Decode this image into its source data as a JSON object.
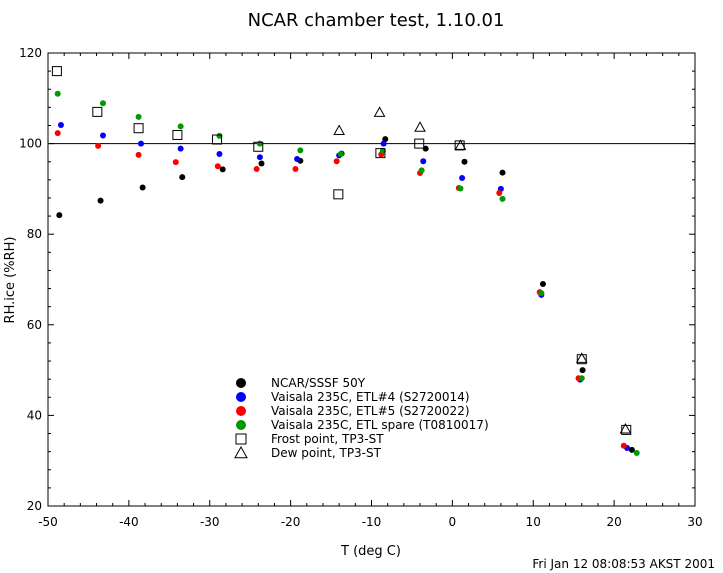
{
  "chart_data": {
    "type": "scatter",
    "title": "NCAR chamber test,  1.10.01",
    "xlabel": "T (deg C)",
    "ylabel": "RH.ice (%RH)",
    "xlim": [
      -50,
      30
    ],
    "ylim": [
      20,
      120
    ],
    "x_ticks": [
      -50,
      -40,
      -30,
      -20,
      -10,
      0,
      10,
      20,
      30
    ],
    "y_ticks": [
      20,
      40,
      60,
      80,
      100,
      120
    ],
    "x_tick_labels": [
      "-50",
      "-40",
      "-30",
      "-20",
      "-10",
      "0",
      "10",
      "20",
      "30"
    ],
    "y_tick_labels": [
      "20",
      "40",
      "60",
      "80",
      "100",
      "120"
    ],
    "reference_line_y": 100,
    "grid": false,
    "legend_position": "lower-center",
    "series": [
      {
        "name": "NCAR/SSSF 50Y",
        "color": "#000000",
        "marker": "dot",
        "points": [
          [
            -48.6,
            84.2
          ],
          [
            -43.5,
            87.4
          ],
          [
            -38.3,
            90.3
          ],
          [
            -33.4,
            92.6
          ],
          [
            -28.4,
            94.3
          ],
          [
            -23.6,
            95.6
          ],
          [
            -18.8,
            96.2
          ],
          [
            -13.7,
            97.8
          ],
          [
            -8.3,
            101.0
          ],
          [
            -3.3,
            98.9
          ],
          [
            1.5,
            96.0
          ],
          [
            6.2,
            93.6
          ],
          [
            11.2,
            69.0
          ],
          [
            16.1,
            50.0
          ],
          [
            22.2,
            32.4
          ]
        ]
      },
      {
        "name": "Vaisala 235C, ETL#4 (S2720014)",
        "color": "#0000ff",
        "marker": "dot",
        "points": [
          [
            -48.4,
            104.1
          ],
          [
            -43.2,
            101.8
          ],
          [
            -38.5,
            100.0
          ],
          [
            -33.6,
            98.9
          ],
          [
            -28.8,
            97.7
          ],
          [
            -23.8,
            97.0
          ],
          [
            -19.2,
            96.6
          ],
          [
            -14.0,
            97.4
          ],
          [
            -8.5,
            100.0
          ],
          [
            -3.6,
            96.1
          ],
          [
            1.2,
            92.4
          ],
          [
            6.0,
            90.0
          ],
          [
            11.0,
            66.6
          ],
          [
            15.8,
            47.9
          ],
          [
            21.6,
            32.8
          ]
        ]
      },
      {
        "name": "Vaisala 235C, ETL#5 (S2720022)",
        "color": "#ff0000",
        "marker": "dot",
        "points": [
          [
            -48.8,
            102.3
          ],
          [
            -43.8,
            99.5
          ],
          [
            -38.8,
            97.5
          ],
          [
            -34.2,
            95.9
          ],
          [
            -29.0,
            95.0
          ],
          [
            -24.2,
            94.4
          ],
          [
            -19.4,
            94.4
          ],
          [
            -14.3,
            96.1
          ],
          [
            -8.8,
            97.6
          ],
          [
            -4.0,
            93.5
          ],
          [
            0.8,
            90.2
          ],
          [
            5.8,
            89.1
          ],
          [
            10.8,
            67.2
          ],
          [
            15.6,
            48.2
          ],
          [
            21.2,
            33.3
          ]
        ]
      },
      {
        "name": "Vaisala 235C, ETL spare (T0810017)",
        "color": "#009900",
        "marker": "dot",
        "points": [
          [
            -48.8,
            111.0
          ],
          [
            -43.2,
            108.9
          ],
          [
            -38.8,
            105.9
          ],
          [
            -33.6,
            103.8
          ],
          [
            -28.8,
            101.7
          ],
          [
            -23.8,
            100.0
          ],
          [
            -18.8,
            98.5
          ],
          [
            -13.8,
            97.7
          ],
          [
            -8.6,
            98.4
          ],
          [
            -3.8,
            94.1
          ],
          [
            1.0,
            90.1
          ],
          [
            6.2,
            87.8
          ],
          [
            11.0,
            67.0
          ],
          [
            16.0,
            48.2
          ],
          [
            22.8,
            31.7
          ]
        ]
      },
      {
        "name": "Frost point, TP3-ST",
        "color": "#000000",
        "marker": "open-square",
        "points": [
          [
            -48.9,
            116.0
          ],
          [
            -43.9,
            107.0
          ],
          [
            -38.8,
            103.4
          ],
          [
            -34.0,
            101.9
          ],
          [
            -29.1,
            100.9
          ],
          [
            -24.0,
            99.3
          ],
          [
            -14.1,
            88.8
          ],
          [
            -8.9,
            97.9
          ],
          [
            -4.1,
            100.0
          ],
          [
            0.9,
            99.6
          ],
          [
            16.0,
            52.4
          ],
          [
            21.5,
            36.8
          ]
        ]
      },
      {
        "name": "Dew point, TP3-ST",
        "color": "#000000",
        "marker": "open-triangle",
        "points": [
          [
            -14.0,
            102.9
          ],
          [
            -9.0,
            106.9
          ],
          [
            -4.0,
            103.6
          ],
          [
            1.0,
            99.6
          ],
          [
            16.0,
            52.6
          ],
          [
            21.4,
            37.0
          ]
        ]
      }
    ]
  },
  "footer": {
    "timestamp": "Fri Jan 12 08:08:53 AKST 2001"
  }
}
